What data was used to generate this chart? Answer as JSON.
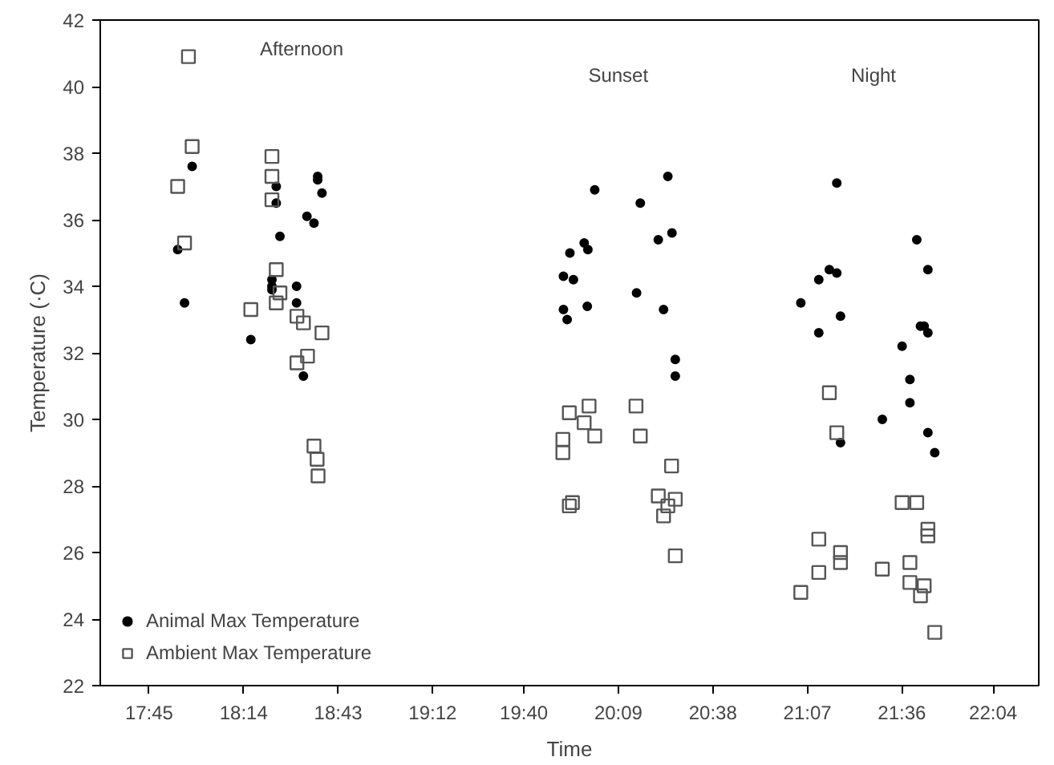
{
  "chart_data": {
    "type": "scatter",
    "xlabel": "Time",
    "ylabel": "Temperature (·C)",
    "xlim": [
      17.5,
      22.3
    ],
    "ylim": [
      22,
      42
    ],
    "xticks": [
      {
        "value": 17.75,
        "label": "17:45"
      },
      {
        "value": 18.2333,
        "label": "18:14"
      },
      {
        "value": 18.7167,
        "label": "18:43"
      },
      {
        "value": 19.2,
        "label": "19:12"
      },
      {
        "value": 19.6667,
        "label": "19:40"
      },
      {
        "value": 20.15,
        "label": "20:09"
      },
      {
        "value": 20.6333,
        "label": "20:38"
      },
      {
        "value": 21.1167,
        "label": "21:07"
      },
      {
        "value": 21.6,
        "label": "21:36"
      },
      {
        "value": 22.0667,
        "label": "22:04"
      }
    ],
    "yticks": [
      22,
      24,
      26,
      28,
      30,
      32,
      34,
      36,
      38,
      40,
      42
    ],
    "grid": false,
    "legend": "bottom left",
    "annotations": [
      "Afternoon",
      "Sunset",
      "Night"
    ],
    "series": [
      {
        "name": "Animal Max Temperature",
        "color": "#000000",
        "marker": "circle",
        "x": [
          17.97,
          17.896,
          17.931,
          18.4,
          18.4,
          18.612,
          18.612,
          18.634,
          18.557,
          18.593,
          18.419,
          18.378,
          18.378,
          18.378,
          18.504,
          18.504,
          18.27,
          18.539,
          20.403,
          20.029,
          20.262,
          20.424,
          20.354,
          19.975,
          19.994,
          19.902,
          19.869,
          19.92,
          20.243,
          19.991,
          19.869,
          20.381,
          19.888,
          20.441,
          20.441,
          21.267,
          21.676,
          21.733,
          21.229,
          21.267,
          21.175,
          21.083,
          21.286,
          21.695,
          21.714,
          21.733,
          21.175,
          21.601,
          21.641,
          21.641,
          21.5,
          21.733,
          21.286,
          21.768
        ],
        "values": [
          37.6,
          35.1,
          33.5,
          37.0,
          36.5,
          37.3,
          37.2,
          36.8,
          36.1,
          35.9,
          35.5,
          34.2,
          34.0,
          33.9,
          34.0,
          33.5,
          32.4,
          31.3,
          37.3,
          36.9,
          36.5,
          35.6,
          35.4,
          35.3,
          35.1,
          35.0,
          34.3,
          34.2,
          33.8,
          33.4,
          33.3,
          33.3,
          33.0,
          31.8,
          31.3,
          37.1,
          35.4,
          34.5,
          34.5,
          34.4,
          34.2,
          33.5,
          33.1,
          32.8,
          32.8,
          32.6,
          32.6,
          32.2,
          31.2,
          30.5,
          30.0,
          29.6,
          29.3,
          29.0
        ]
      },
      {
        "name": "Ambient Max Temperature",
        "color": "#555555",
        "marker": "square",
        "x": [
          17.951,
          17.97,
          17.896,
          17.931,
          18.378,
          18.378,
          18.378,
          18.4,
          18.419,
          18.4,
          18.27,
          18.506,
          18.539,
          18.634,
          18.56,
          18.506,
          18.593,
          18.609,
          18.614,
          19.899,
          20.0,
          19.975,
          20.24,
          20.029,
          20.262,
          19.866,
          19.866,
          20.422,
          19.899,
          19.915,
          20.354,
          20.441,
          20.403,
          20.381,
          20.441,
          21.229,
          21.267,
          21.601,
          21.676,
          21.733,
          21.733,
          21.175,
          21.286,
          21.286,
          21.175,
          21.5,
          21.641,
          21.641,
          21.714,
          21.695,
          21.083,
          21.768
        ],
        "values": [
          40.9,
          38.2,
          37.0,
          35.3,
          37.9,
          37.3,
          36.6,
          34.5,
          33.8,
          33.5,
          33.3,
          33.1,
          32.9,
          32.6,
          31.9,
          31.7,
          29.2,
          28.8,
          28.3,
          30.2,
          30.4,
          29.9,
          30.4,
          29.5,
          29.5,
          29.4,
          29.0,
          28.6,
          27.4,
          27.5,
          27.7,
          27.6,
          27.4,
          27.1,
          25.9,
          30.8,
          29.6,
          27.5,
          27.5,
          26.7,
          26.5,
          26.4,
          26.0,
          25.7,
          25.4,
          25.5,
          25.7,
          25.1,
          25.0,
          24.7,
          24.8,
          23.6
        ]
      }
    ]
  }
}
